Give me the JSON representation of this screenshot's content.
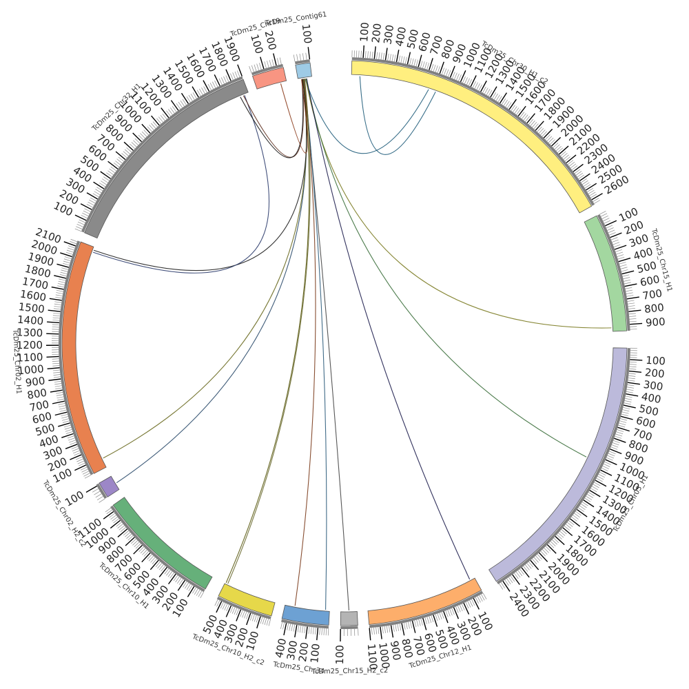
{
  "figure": {
    "background": "#ffffff",
    "track_color": "#808080",
    "link_color": "#222222"
  },
  "chromosomes": [
    {
      "id": "chr30",
      "name": "TcDm25_Chr30_H1_c2",
      "size": 2650,
      "color": "#ffef7f",
      "major_step": 100,
      "start_angle": 1.5,
      "end_angle": 61.0
    },
    {
      "id": "chr15",
      "name": "TcDm25_Chr15_H1",
      "size": 950,
      "color": "#a3d7a0",
      "major_step": 100,
      "start_angle": 63.2,
      "end_angle": 87.5
    },
    {
      "id": "chr05",
      "name": "TcDm25_Chr05_H1",
      "size": 2450,
      "color": "#bcbadb",
      "major_step": 100,
      "start_angle": 91.0,
      "end_angle": 147.5
    },
    {
      "id": "chr12",
      "name": "TcDm25_Chr12_H1",
      "size": 1100,
      "color": "#fdae6b",
      "major_step": 100,
      "start_angle": 151.0,
      "end_angle": 175.0
    },
    {
      "id": "chr15h2",
      "name": "TcDm25_Chr15_H2_c2",
      "size": 100,
      "color": "#b4b4b4",
      "major_step": 100,
      "start_angle": 177.3,
      "end_angle": 180.8
    },
    {
      "id": "chr34",
      "name": "TcDm25_Chr34",
      "size": 450,
      "color": "#6da1d3",
      "major_step": 100,
      "start_angle": 183.2,
      "end_angle": 192.8
    },
    {
      "id": "chr10h2",
      "name": "TcDm25_Chr10_H2_c2",
      "size": 550,
      "color": "#e6d84a",
      "major_step": 100,
      "start_angle": 195.0,
      "end_angle": 206.5
    },
    {
      "id": "chr10",
      "name": "TcDm25_Chr10_H1",
      "size": 1150,
      "color": "#66b07a",
      "major_step": 100,
      "start_angle": 209.5,
      "end_angle": 235.0
    },
    {
      "id": "chr02h2",
      "name": "TcDm25_Chr02_H2_c2",
      "size": 110,
      "color": "#9c87c7",
      "major_step": 100,
      "start_angle": 237.0,
      "end_angle": 240.3
    },
    {
      "id": "chr02",
      "name": "TcDm25_Chr02_H1",
      "size": 2150,
      "color": "#e8814f",
      "major_step": 100,
      "start_angle": 242.5,
      "end_angle": 291.0
    },
    {
      "id": "chr32",
      "name": "TcDm25_Chr32_H1",
      "size": 1900,
      "color": "#8a8a8a",
      "major_step": 100,
      "start_angle": 293.0,
      "end_angle": 339.0
    },
    {
      "id": "chr19",
      "name": "TcDm25_Chr19",
      "size": 250,
      "color": "#f89582",
      "major_step": 100,
      "start_angle": 341.0,
      "end_angle": 347.5
    },
    {
      "id": "ctg61",
      "name": "TcDm25_Contig61",
      "size": 100,
      "color": "#9ecbe6",
      "major_step": 100,
      "start_angle": 350.0,
      "end_angle": 353.0
    }
  ],
  "links": [
    {
      "from": "ctg61",
      "from_pos": 50,
      "to": "chr30",
      "to_pos": 750,
      "color": "#1f5c7a"
    },
    {
      "from": "chr30",
      "from_pos": 820,
      "to": "chr30",
      "to_pos": 80,
      "color": "#1f5c7a"
    },
    {
      "from": "ctg61",
      "from_pos": 55,
      "to": "chr15",
      "to_pos": 920,
      "color": "#7a7a20"
    },
    {
      "from": "ctg61",
      "from_pos": 60,
      "to": "chr05",
      "to_pos": 1050,
      "color": "#3a6e3a"
    },
    {
      "from": "ctg61",
      "from_pos": 62,
      "to": "chr12",
      "to_pos": 50,
      "color": "#1a1a4a"
    },
    {
      "from": "ctg61",
      "from_pos": 40,
      "to": "chr15h2",
      "to_pos": 50,
      "color": "#444444"
    },
    {
      "from": "ctg61",
      "from_pos": 45,
      "to": "chr34",
      "to_pos": 40,
      "color": "#2a5a7a"
    },
    {
      "from": "ctg61",
      "from_pos": 42,
      "to": "chr34",
      "to_pos": 350,
      "color": "#7a3a1a"
    },
    {
      "from": "ctg61",
      "from_pos": 38,
      "to": "chr10h2",
      "to_pos": 540,
      "color": "#5a5a10"
    },
    {
      "from": "ctg61",
      "from_pos": 35,
      "to": "chr02h2",
      "to_pos": 50,
      "color": "#2a4a6a"
    },
    {
      "from": "ctg61",
      "from_pos": 36,
      "to": "chr02",
      "to_pos": 90,
      "color": "#6a6a20"
    },
    {
      "from": "ctg61",
      "from_pos": 32,
      "to": "chr02",
      "to_pos": 2120,
      "color": "#1a1a1a"
    },
    {
      "from": "chr32",
      "from_pos": 1860,
      "to": "chr02",
      "to_pos": 2100,
      "color": "#2a3a6a"
    },
    {
      "from": "ctg61",
      "from_pos": 30,
      "to": "chr32",
      "to_pos": 1850,
      "color": "#5a2a1a"
    },
    {
      "from": "ctg61",
      "from_pos": 28,
      "to": "chr32",
      "to_pos": 1820,
      "color": "#1a1a1a"
    },
    {
      "from": "ctg61",
      "from_pos": 25,
      "to": "chr19",
      "to_pos": 200,
      "color": "#8a3a1a"
    },
    {
      "from": "ctg61",
      "from_pos": 48,
      "to": "chr10h2",
      "to_pos": 520,
      "color": "#6a6a30"
    }
  ]
}
